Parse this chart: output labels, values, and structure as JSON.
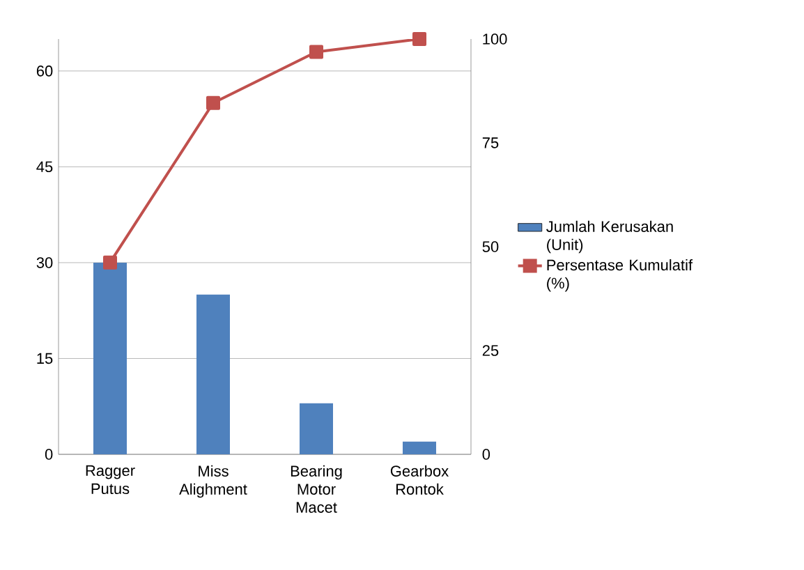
{
  "chart_data": {
    "type": "bar",
    "categories": [
      "Ragger Putus",
      "Miss Alighment",
      "Bearing Motor Macet",
      "Gearbox Rontok"
    ],
    "series": [
      {
        "name": "Jumlah Kerusakan (Unit)",
        "color": "#4f81bd",
        "values": [
          30,
          25,
          8,
          2
        ]
      },
      {
        "name": "Persentase Kumulatif (%)",
        "type": "line",
        "axis": "y2",
        "color": "#c0504d",
        "values": [
          46.2,
          84.6,
          96.9,
          100
        ]
      }
    ],
    "ylim": [
      0,
      65
    ],
    "yticks": [
      0,
      15,
      30,
      45,
      60
    ],
    "y2lim": [
      0,
      100
    ],
    "y2ticks": [
      0,
      25,
      50,
      75,
      100
    ],
    "grid": "y",
    "legend": "right",
    "marker": "square"
  }
}
